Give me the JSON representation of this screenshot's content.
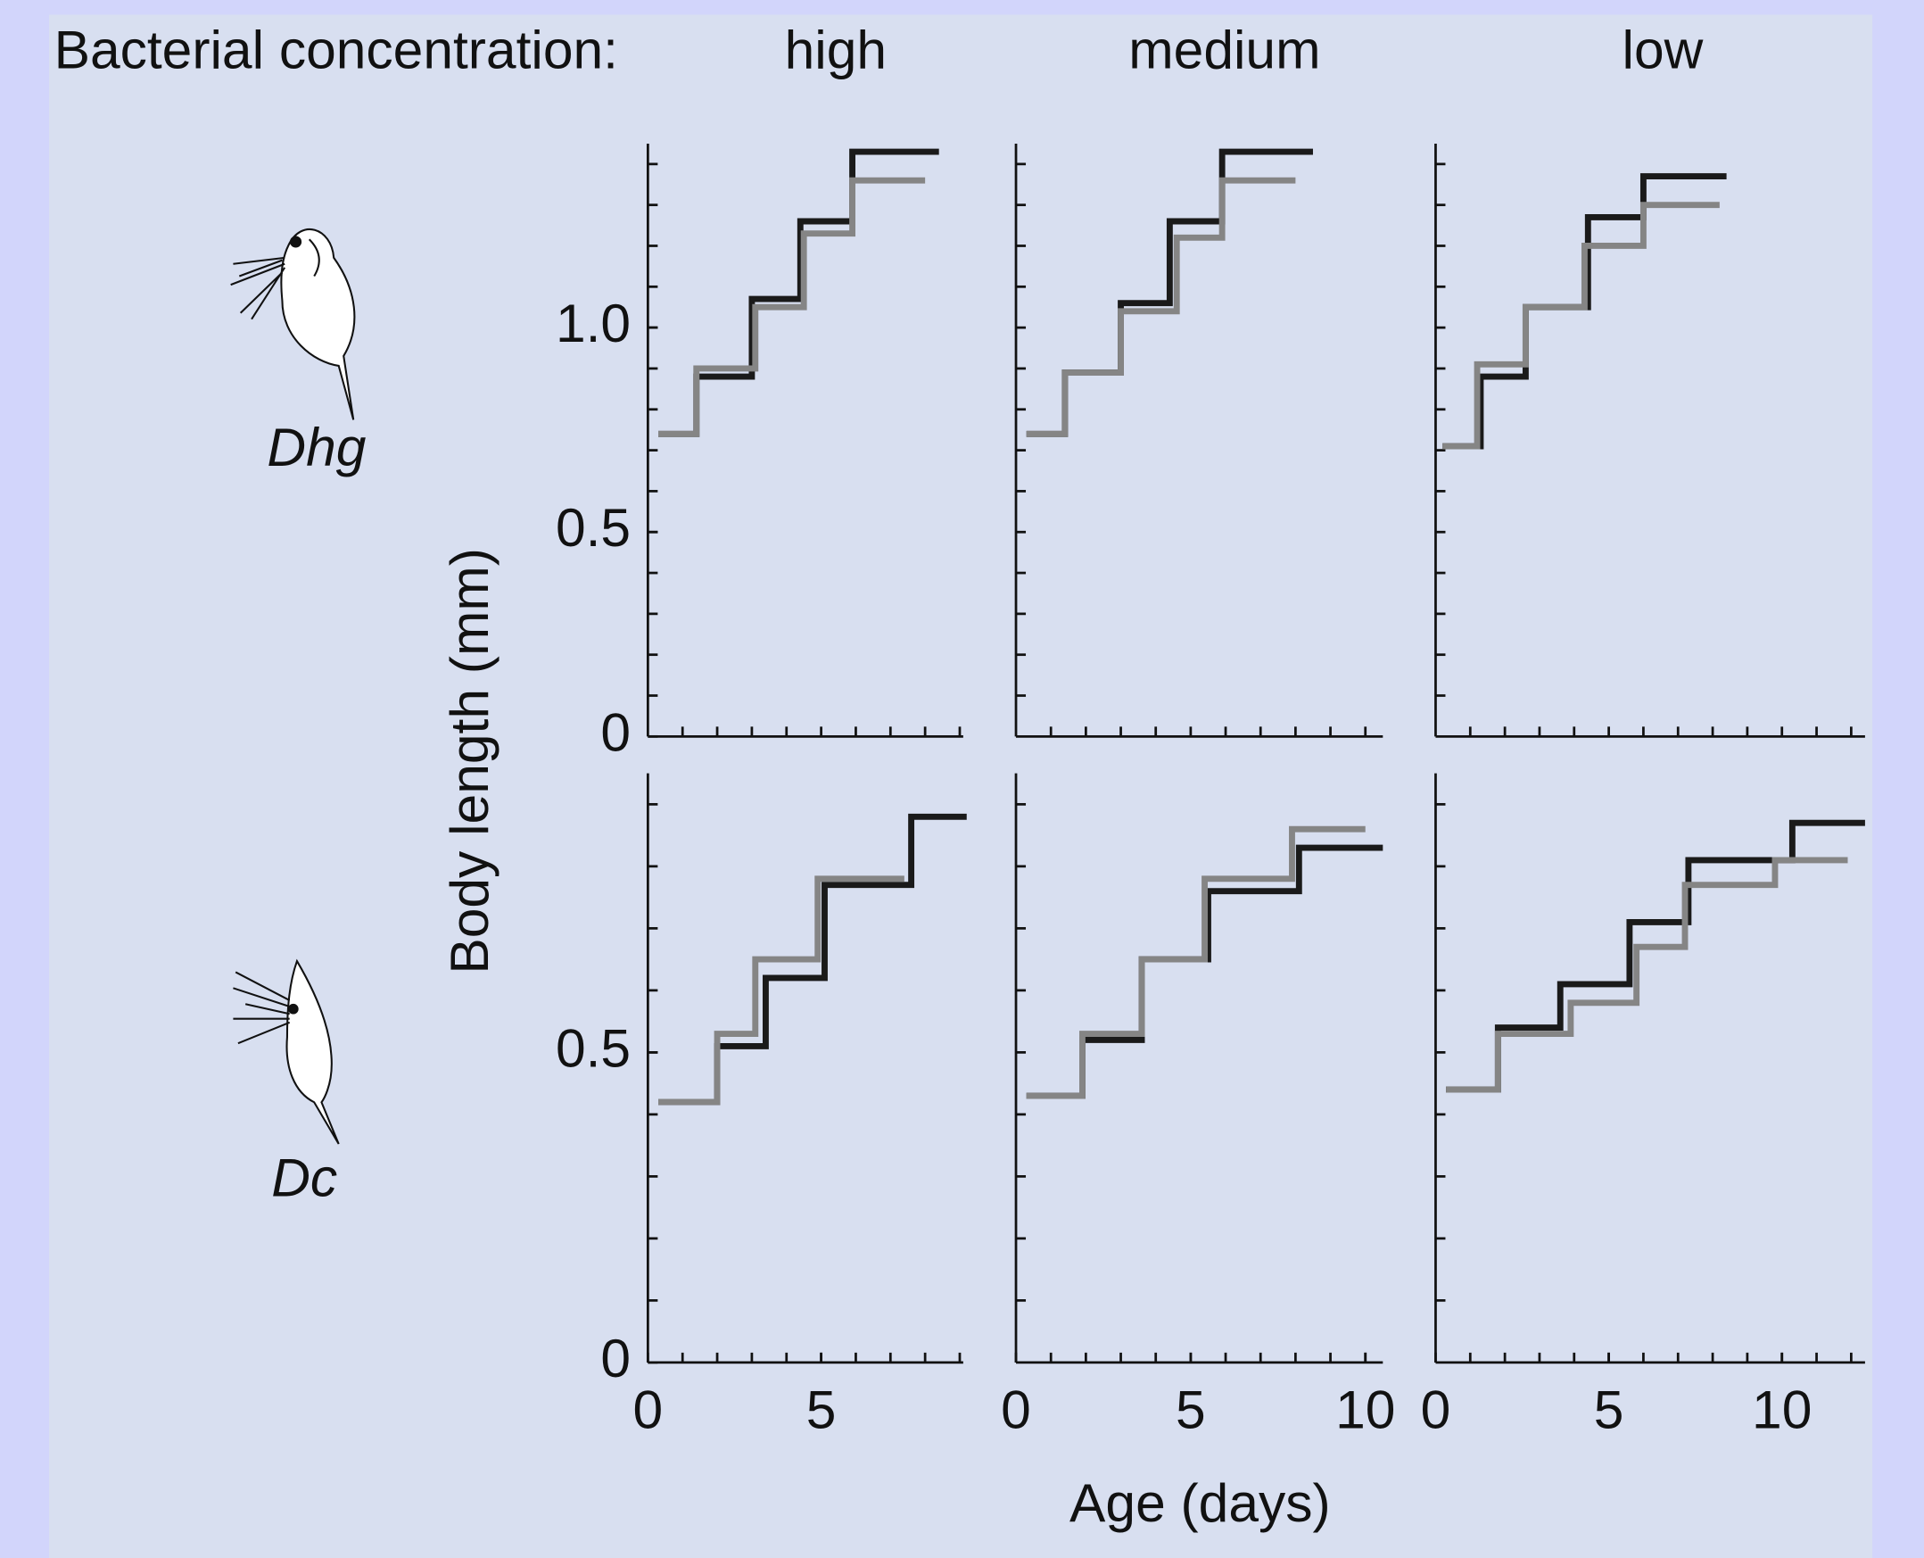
{
  "header": "Bacterial concentration:",
  "columns": [
    "high",
    "medium",
    "low"
  ],
  "rows": [
    "Dhg",
    "Dc"
  ],
  "ylabel": "Body length (mm)",
  "xlabel": "Age (days)",
  "chart_data": [
    {
      "type": "step",
      "xlim": [
        0,
        9.1
      ],
      "ylim": [
        0,
        1.45
      ],
      "yticks": [
        0,
        0.5,
        {
          "value": 1,
          "label": "1.0"
        }
      ],
      "minor_xtick_interval": 1,
      "minor_ytick_interval": 0.1,
      "series": [
        {
          "color": "#1a1a1a",
          "x": [
            0.3,
            1.4,
            3.0,
            4.4,
            5.9,
            8.4
          ],
          "values": [
            0.74,
            0.88,
            1.07,
            1.26,
            1.43,
            1.43
          ]
        },
        {
          "color": "#858585",
          "x": [
            0.3,
            1.4,
            3.1,
            4.5,
            5.9,
            8.0
          ],
          "values": [
            0.74,
            0.9,
            1.05,
            1.23,
            1.36,
            1.36
          ]
        }
      ]
    },
    {
      "type": "step",
      "xlim": [
        0,
        10.5
      ],
      "ylim": [
        0,
        1.45
      ],
      "minor_xtick_interval": 1,
      "minor_ytick_interval": 0.1,
      "series": [
        {
          "color": "#1a1a1a",
          "x": [
            0.3,
            1.4,
            3.0,
            4.4,
            5.9,
            8.5
          ],
          "values": [
            0.74,
            0.89,
            1.06,
            1.26,
            1.43,
            1.43
          ]
        },
        {
          "color": "#858585",
          "x": [
            0.3,
            1.4,
            3.0,
            4.6,
            5.9,
            8.0
          ],
          "values": [
            0.74,
            0.89,
            1.04,
            1.22,
            1.36,
            1.36
          ]
        }
      ]
    },
    {
      "type": "step",
      "xlim": [
        0,
        12.4
      ],
      "ylim": [
        0,
        1.45
      ],
      "minor_xtick_interval": 1,
      "minor_ytick_interval": 0.1,
      "series": [
        {
          "color": "#1a1a1a",
          "x": [
            0.2,
            1.3,
            2.6,
            4.4,
            6.0,
            8.4
          ],
          "values": [
            0.71,
            0.88,
            1.05,
            1.27,
            1.37,
            1.37
          ]
        },
        {
          "color": "#858585",
          "x": [
            0.2,
            1.2,
            2.6,
            4.3,
            6.0,
            8.2
          ],
          "values": [
            0.71,
            0.91,
            1.05,
            1.2,
            1.3,
            1.3
          ]
        }
      ]
    },
    {
      "type": "step",
      "xlim": [
        0,
        9.1
      ],
      "ylim": [
        0,
        0.95
      ],
      "xticks": [
        0,
        5
      ],
      "yticks": [
        0,
        0.5
      ],
      "minor_xtick_interval": 1,
      "minor_ytick_interval": 0.1,
      "series": [
        {
          "color": "#1a1a1a",
          "x": [
            0.3,
            2.0,
            3.4,
            5.1,
            7.6,
            9.2
          ],
          "values": [
            0.42,
            0.51,
            0.62,
            0.77,
            0.88,
            0.88
          ]
        },
        {
          "color": "#858585",
          "x": [
            0.3,
            2.0,
            3.1,
            4.9,
            7.4
          ],
          "values": [
            0.42,
            0.53,
            0.65,
            0.78,
            0.78
          ]
        }
      ]
    },
    {
      "type": "step",
      "xlim": [
        0,
        10.5
      ],
      "ylim": [
        0,
        0.95
      ],
      "xticks": [
        0,
        5,
        10
      ],
      "minor_xtick_interval": 1,
      "minor_ytick_interval": 0.1,
      "series": [
        {
          "color": "#1a1a1a",
          "x": [
            0.3,
            1.9,
            3.6,
            5.5,
            8.1,
            10.5
          ],
          "values": [
            0.43,
            0.52,
            0.65,
            0.76,
            0.83,
            0.83
          ]
        },
        {
          "color": "#858585",
          "x": [
            0.3,
            1.9,
            3.6,
            5.4,
            7.9,
            10.0
          ],
          "values": [
            0.43,
            0.53,
            0.65,
            0.78,
            0.86,
            0.86
          ]
        }
      ]
    },
    {
      "type": "step",
      "xlim": [
        0,
        12.4
      ],
      "ylim": [
        0,
        0.95
      ],
      "xticks": [
        0,
        5,
        10
      ],
      "minor_xtick_interval": 1,
      "minor_ytick_interval": 0.1,
      "series": [
        {
          "color": "#1a1a1a",
          "x": [
            0.3,
            1.8,
            3.6,
            5.6,
            7.3,
            10.3,
            12.4
          ],
          "values": [
            0.44,
            0.54,
            0.61,
            0.71,
            0.81,
            0.87,
            0.87
          ]
        },
        {
          "color": "#858585",
          "x": [
            0.3,
            1.8,
            3.9,
            5.8,
            7.2,
            9.8,
            11.9
          ],
          "values": [
            0.44,
            0.53,
            0.58,
            0.67,
            0.77,
            0.81,
            0.81
          ]
        }
      ]
    }
  ]
}
